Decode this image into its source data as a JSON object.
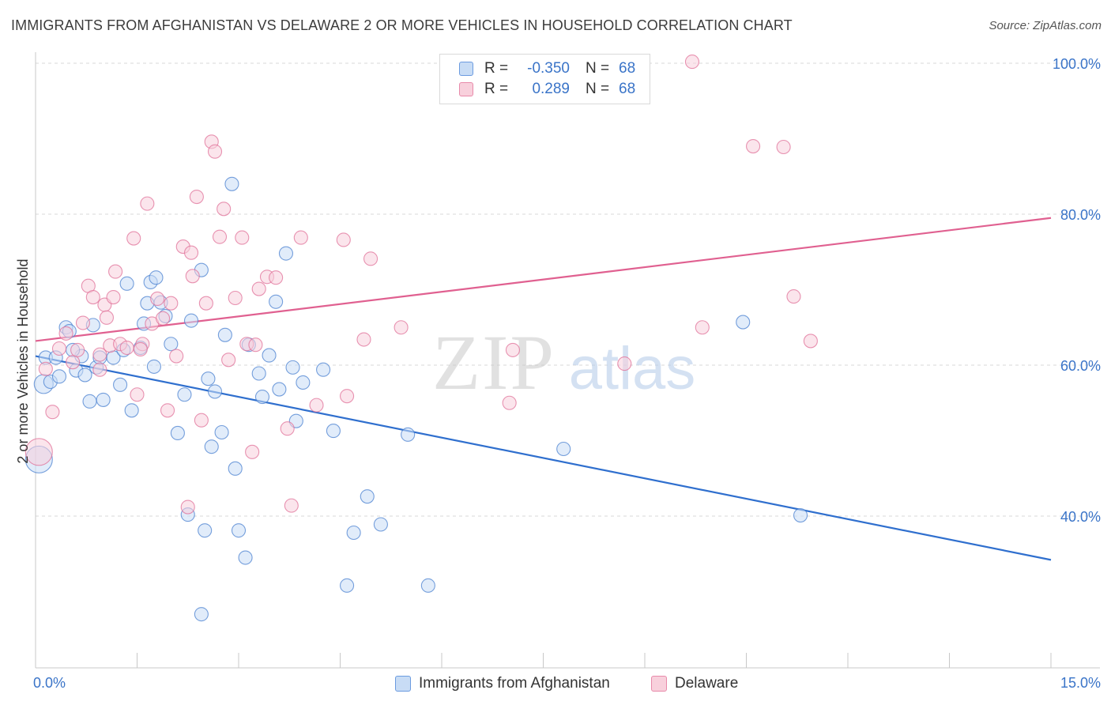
{
  "title": "IMMIGRANTS FROM AFGHANISTAN VS DELAWARE 2 OR MORE VEHICLES IN HOUSEHOLD CORRELATION CHART",
  "source": "Source: ZipAtlas.com",
  "watermark": {
    "zip": "ZIP",
    "atlas": "atlas"
  },
  "legend": {
    "rows": [
      {
        "r_label": "R =",
        "r_value": "-0.350",
        "n_label": "N =",
        "n_value": "68"
      },
      {
        "r_label": "R =",
        "r_value": "0.289",
        "n_label": "N =",
        "n_value": "68"
      }
    ]
  },
  "bottom_legend": {
    "series1": "Immigrants from Afghanistan",
    "series2": "Delaware"
  },
  "colors": {
    "blue": "#4a80d0",
    "blue_fill": "#c8dcf5",
    "blue_line": "#2f6fce",
    "pink": "#e07098",
    "pink_fill": "#f8d0dc",
    "pink_line": "#e06090",
    "axis_text": "#3a74c8",
    "grid": "#d8d8d8"
  },
  "chart_data": {
    "type": "scatter",
    "title": "IMMIGRANTS FROM AFGHANISTAN VS DELAWARE 2 OR MORE VEHICLES IN HOUSEHOLD CORRELATION CHART",
    "xlabel": "",
    "ylabel": "2 or more Vehicles in Household",
    "xlim": [
      0,
      15
    ],
    "ylim": [
      20,
      102
    ],
    "x_tick_labels": {
      "left": "0.0%",
      "right": "15.0%"
    },
    "y_ticks": [
      {
        "value": 100,
        "label": "100.0%"
      },
      {
        "value": 80,
        "label": "80.0%"
      },
      {
        "value": 60,
        "label": "60.0%"
      },
      {
        "value": 40,
        "label": "40.0%"
      }
    ],
    "series": [
      {
        "name": "Immigrants from Afghanistan",
        "color": "blue",
        "r": -0.35,
        "n": 68,
        "trend": {
          "x0": 0,
          "y0": 61.2,
          "x1": 15,
          "y1": 34.2
        },
        "points": [
          [
            0.05,
            47.5,
            3
          ],
          [
            0.12,
            57.5,
            2
          ],
          [
            0.15,
            61.0,
            1
          ],
          [
            0.22,
            57.8,
            1
          ],
          [
            0.3,
            61.0,
            1
          ],
          [
            0.35,
            58.5,
            1
          ],
          [
            0.45,
            65.0,
            1
          ],
          [
            0.5,
            64.5,
            1
          ],
          [
            0.6,
            59.3,
            1
          ],
          [
            0.68,
            61.2,
            1
          ],
          [
            0.73,
            58.7,
            1
          ],
          [
            0.8,
            55.2,
            1
          ],
          [
            0.85,
            65.3,
            1
          ],
          [
            0.9,
            59.7,
            1
          ],
          [
            1.0,
            55.4,
            1
          ],
          [
            1.15,
            61.0,
            1
          ],
          [
            1.25,
            57.4,
            1
          ],
          [
            1.35,
            70.8,
            1
          ],
          [
            1.42,
            54.0,
            1
          ],
          [
            1.55,
            62.3,
            1
          ],
          [
            1.6,
            65.5,
            1
          ],
          [
            1.65,
            68.2,
            1
          ],
          [
            1.7,
            71.0,
            1
          ],
          [
            1.78,
            71.6,
            1
          ],
          [
            1.85,
            68.3,
            1
          ],
          [
            1.92,
            66.5,
            1
          ],
          [
            2.0,
            62.8,
            1
          ],
          [
            2.1,
            51.0,
            1
          ],
          [
            2.2,
            56.1,
            1
          ],
          [
            2.25,
            40.2,
            1
          ],
          [
            2.3,
            65.9,
            1
          ],
          [
            2.45,
            72.6,
            1
          ],
          [
            2.5,
            38.1,
            1
          ],
          [
            2.55,
            58.2,
            1
          ],
          [
            2.6,
            49.2,
            1
          ],
          [
            2.75,
            51.1,
            1
          ],
          [
            2.8,
            64.0,
            1
          ],
          [
            2.9,
            84.0,
            1
          ],
          [
            2.95,
            46.3,
            1
          ],
          [
            3.0,
            38.1,
            1
          ],
          [
            3.1,
            34.5,
            1
          ],
          [
            3.15,
            62.7,
            1
          ],
          [
            3.3,
            58.9,
            1
          ],
          [
            3.45,
            61.3,
            1
          ],
          [
            3.55,
            68.4,
            1
          ],
          [
            3.6,
            56.8,
            1
          ],
          [
            3.7,
            74.8,
            1
          ],
          [
            3.8,
            59.7,
            1
          ],
          [
            3.85,
            52.6,
            1
          ],
          [
            3.95,
            57.7,
            1
          ],
          [
            4.25,
            59.4,
            1
          ],
          [
            4.4,
            51.3,
            1
          ],
          [
            4.6,
            30.8,
            1
          ],
          [
            4.7,
            37.8,
            1
          ],
          [
            4.9,
            42.6,
            1
          ],
          [
            5.1,
            38.9,
            1
          ],
          [
            5.5,
            50.8,
            1
          ],
          [
            5.8,
            30.8,
            1
          ],
          [
            7.8,
            48.9,
            1
          ],
          [
            10.45,
            65.7,
            1
          ],
          [
            11.3,
            40.1,
            1
          ],
          [
            2.45,
            27.0,
            1
          ],
          [
            1.3,
            62.0,
            1
          ],
          [
            0.95,
            61.0,
            1
          ],
          [
            0.55,
            62.0,
            1
          ],
          [
            1.75,
            59.8,
            1
          ],
          [
            2.65,
            56.5,
            1
          ],
          [
            3.35,
            55.8,
            1
          ]
        ]
      },
      {
        "name": "Delaware",
        "color": "pink",
        "r": 0.289,
        "n": 68,
        "trend": {
          "x0": 0,
          "y0": 63.2,
          "x1": 15,
          "y1": 79.5
        },
        "points": [
          [
            0.05,
            48.5,
            3
          ],
          [
            0.15,
            59.5,
            1
          ],
          [
            0.25,
            53.8,
            1
          ],
          [
            0.35,
            62.2,
            1
          ],
          [
            0.45,
            64.2,
            1
          ],
          [
            0.55,
            60.4,
            1
          ],
          [
            0.62,
            62.0,
            1
          ],
          [
            0.7,
            65.6,
            1
          ],
          [
            0.78,
            70.5,
            1
          ],
          [
            0.85,
            69.0,
            1
          ],
          [
            0.95,
            61.4,
            1
          ],
          [
            1.02,
            68.0,
            1
          ],
          [
            1.1,
            62.6,
            1
          ],
          [
            1.18,
            72.4,
            1
          ],
          [
            1.25,
            62.8,
            1
          ],
          [
            1.35,
            62.3,
            1
          ],
          [
            1.45,
            76.8,
            1
          ],
          [
            1.5,
            56.1,
            1
          ],
          [
            1.58,
            62.8,
            1
          ],
          [
            1.65,
            81.4,
            1
          ],
          [
            1.72,
            65.5,
            1
          ],
          [
            1.8,
            68.8,
            1
          ],
          [
            1.88,
            66.2,
            1
          ],
          [
            1.95,
            54.0,
            1
          ],
          [
            2.0,
            68.2,
            1
          ],
          [
            2.08,
            61.2,
            1
          ],
          [
            2.18,
            75.7,
            1
          ],
          [
            2.25,
            41.2,
            1
          ],
          [
            2.32,
            71.8,
            1
          ],
          [
            2.38,
            82.3,
            1
          ],
          [
            2.45,
            52.7,
            1
          ],
          [
            2.52,
            68.2,
            1
          ],
          [
            2.6,
            89.6,
            1
          ],
          [
            2.65,
            88.3,
            1
          ],
          [
            2.72,
            77.0,
            1
          ],
          [
            2.78,
            80.7,
            1
          ],
          [
            2.85,
            60.7,
            1
          ],
          [
            2.95,
            68.9,
            1
          ],
          [
            3.05,
            76.9,
            1
          ],
          [
            3.12,
            62.8,
            1
          ],
          [
            3.2,
            48.5,
            1
          ],
          [
            3.3,
            70.1,
            1
          ],
          [
            3.42,
            71.7,
            1
          ],
          [
            3.55,
            71.6,
            1
          ],
          [
            3.72,
            51.6,
            1
          ],
          [
            3.78,
            41.4,
            1
          ],
          [
            3.92,
            76.9,
            1
          ],
          [
            4.15,
            54.7,
            1
          ],
          [
            4.55,
            76.6,
            1
          ],
          [
            4.6,
            55.9,
            1
          ],
          [
            4.85,
            63.4,
            1
          ],
          [
            4.95,
            74.1,
            1
          ],
          [
            5.4,
            65.0,
            1
          ],
          [
            7.0,
            55.0,
            1
          ],
          [
            7.05,
            62.0,
            1
          ],
          [
            8.7,
            60.2,
            1
          ],
          [
            9.7,
            100.2,
            1
          ],
          [
            9.85,
            65.0,
            1
          ],
          [
            10.6,
            89.0,
            1
          ],
          [
            11.05,
            88.9,
            1
          ],
          [
            11.2,
            69.1,
            1
          ],
          [
            11.45,
            63.2,
            1
          ],
          [
            1.15,
            69.0,
            1
          ],
          [
            0.95,
            59.4,
            1
          ],
          [
            1.05,
            66.3,
            1
          ],
          [
            2.3,
            74.9,
            1
          ],
          [
            1.55,
            62.1,
            1
          ],
          [
            3.25,
            62.7,
            1
          ]
        ]
      }
    ]
  }
}
